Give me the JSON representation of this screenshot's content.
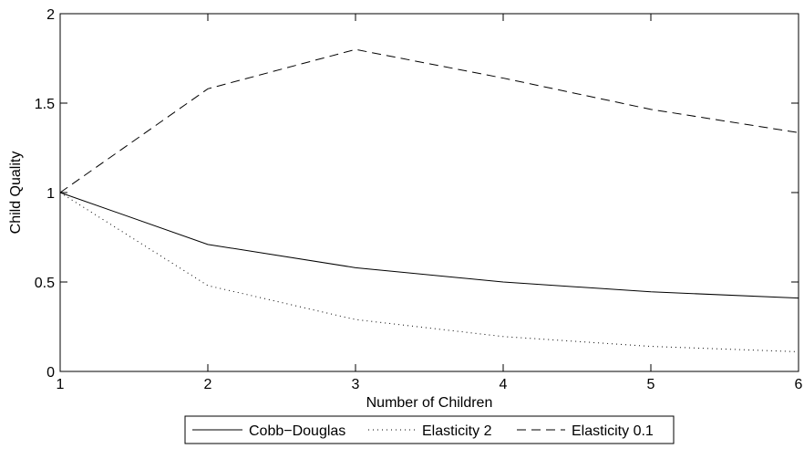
{
  "chart_data": {
    "type": "line",
    "title": "",
    "xlabel": "Number of Children",
    "ylabel": "Child Quality",
    "xlim": [
      1,
      6
    ],
    "ylim": [
      0,
      2
    ],
    "x_ticks": [
      1,
      2,
      3,
      4,
      5,
      6
    ],
    "y_ticks": [
      0,
      0.5,
      1,
      1.5,
      2
    ],
    "x": [
      1,
      2,
      3,
      4,
      5,
      6
    ],
    "grid": false,
    "legend_placement": "bottom-center",
    "series": [
      {
        "name": "Cobb−Douglas",
        "style": "solid",
        "color": "#000000",
        "values": [
          1.0,
          0.71,
          0.58,
          0.5,
          0.445,
          0.41
        ]
      },
      {
        "name": "Elasticity 2",
        "style": "dotted",
        "color": "#000000",
        "values": [
          1.0,
          0.48,
          0.29,
          0.195,
          0.14,
          0.11
        ]
      },
      {
        "name": "Elasticity 0.1",
        "style": "dashed",
        "color": "#000000",
        "values": [
          1.0,
          1.58,
          1.8,
          1.64,
          1.465,
          1.335
        ]
      }
    ]
  }
}
